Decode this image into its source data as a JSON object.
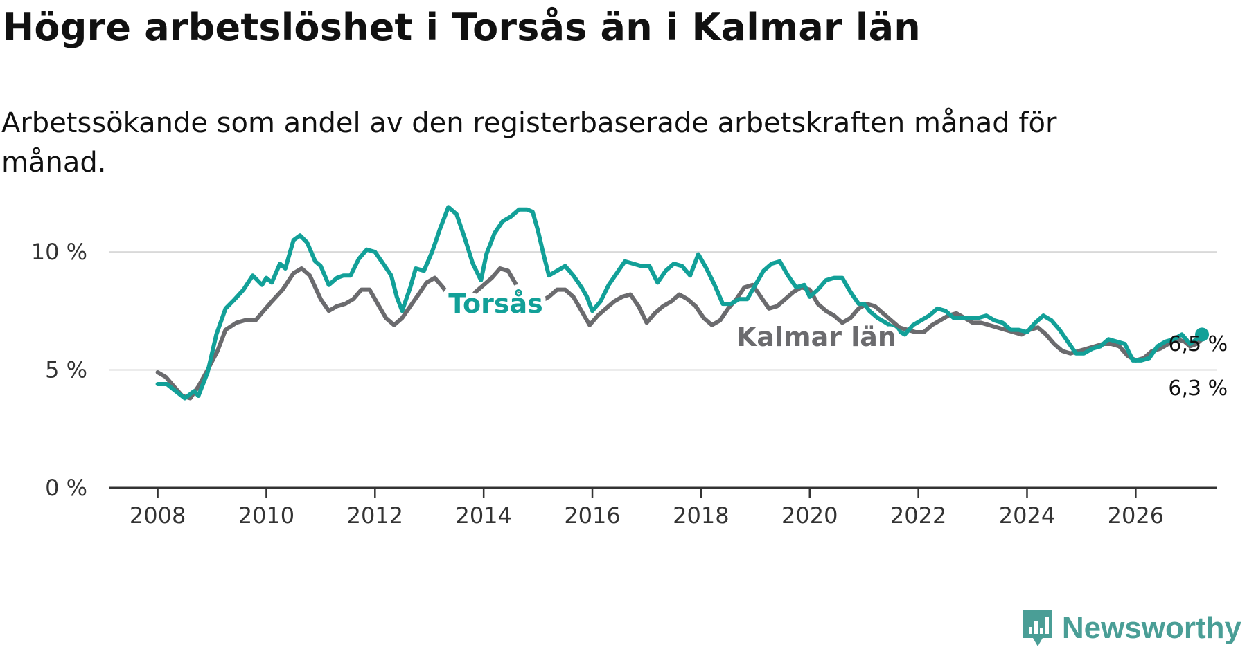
{
  "header": {
    "title": "Högre arbetslöshet i Torsås än i Kalmar län",
    "subtitle": "Arbetssökande som andel av den registerbaserade arbetskraften månad för månad."
  },
  "brand": {
    "name": "Newsworthy"
  },
  "colors": {
    "torsas": "#12a098",
    "kalmar": "#6b6b6e",
    "grid": "#d9d9d9",
    "axis": "#333333",
    "brand": "#4a9e96"
  },
  "chart_data": {
    "type": "line",
    "title": "Högre arbetslöshet i Torsås än i Kalmar län",
    "xlabel": "",
    "ylabel": "",
    "xlim": [
      2007.1,
      2027.5
    ],
    "ylim": [
      0,
      11
    ],
    "yticks": [
      0,
      5,
      10
    ],
    "ytick_labels": [
      "0 %",
      "5 %",
      "10 %"
    ],
    "xticks": [
      2008,
      2010,
      2012,
      2014,
      2016,
      2018,
      2020,
      2022,
      2024,
      2026
    ],
    "xtick_labels": [
      "2008",
      "2010",
      "2012",
      "2014",
      "2016",
      "2018",
      "2020",
      "2022",
      "2024",
      "2026"
    ],
    "grid": true,
    "series": [
      {
        "name": "Torsås",
        "color": "#12a098",
        "end_label": "6,5 %",
        "points": [
          [
            2008.0,
            4.4
          ],
          [
            2008.17,
            4.4
          ],
          [
            2008.33,
            4.1
          ],
          [
            2008.5,
            3.8
          ],
          [
            2008.67,
            4.1
          ],
          [
            2008.75,
            3.9
          ],
          [
            2008.92,
            4.9
          ],
          [
            2009.08,
            6.5
          ],
          [
            2009.25,
            7.6
          ],
          [
            2009.42,
            8.0
          ],
          [
            2009.58,
            8.4
          ],
          [
            2009.75,
            9.0
          ],
          [
            2009.92,
            8.6
          ],
          [
            2010.0,
            8.9
          ],
          [
            2010.1,
            8.7
          ],
          [
            2010.25,
            9.5
          ],
          [
            2010.35,
            9.3
          ],
          [
            2010.5,
            10.5
          ],
          [
            2010.62,
            10.7
          ],
          [
            2010.75,
            10.4
          ],
          [
            2010.9,
            9.6
          ],
          [
            2011.0,
            9.4
          ],
          [
            2011.15,
            8.6
          ],
          [
            2011.3,
            8.9
          ],
          [
            2011.42,
            9.0
          ],
          [
            2011.55,
            9.0
          ],
          [
            2011.7,
            9.7
          ],
          [
            2011.85,
            10.1
          ],
          [
            2012.0,
            10.0
          ],
          [
            2012.15,
            9.5
          ],
          [
            2012.3,
            9.0
          ],
          [
            2012.4,
            8.1
          ],
          [
            2012.5,
            7.5
          ],
          [
            2012.65,
            8.5
          ],
          [
            2012.75,
            9.3
          ],
          [
            2012.9,
            9.2
          ],
          [
            2013.05,
            10.0
          ],
          [
            2013.2,
            11.0
          ],
          [
            2013.35,
            11.9
          ],
          [
            2013.5,
            11.6
          ],
          [
            2013.65,
            10.6
          ],
          [
            2013.8,
            9.5
          ],
          [
            2013.95,
            8.8
          ],
          [
            2014.05,
            9.9
          ],
          [
            2014.2,
            10.8
          ],
          [
            2014.35,
            11.3
          ],
          [
            2014.5,
            11.5
          ],
          [
            2014.65,
            11.8
          ],
          [
            2014.8,
            11.8
          ],
          [
            2014.9,
            11.7
          ],
          [
            2015.0,
            10.9
          ],
          [
            2015.1,
            9.9
          ],
          [
            2015.2,
            9.0
          ],
          [
            2015.35,
            9.2
          ],
          [
            2015.5,
            9.4
          ],
          [
            2015.65,
            9.0
          ],
          [
            2015.8,
            8.5
          ],
          [
            2015.9,
            8.1
          ],
          [
            2016.0,
            7.5
          ],
          [
            2016.15,
            7.9
          ],
          [
            2016.3,
            8.6
          ],
          [
            2016.45,
            9.1
          ],
          [
            2016.6,
            9.6
          ],
          [
            2016.75,
            9.5
          ],
          [
            2016.9,
            9.4
          ],
          [
            2017.05,
            9.4
          ],
          [
            2017.2,
            8.7
          ],
          [
            2017.35,
            9.2
          ],
          [
            2017.5,
            9.5
          ],
          [
            2017.65,
            9.4
          ],
          [
            2017.8,
            9.0
          ],
          [
            2017.95,
            9.9
          ],
          [
            2018.1,
            9.3
          ],
          [
            2018.25,
            8.6
          ],
          [
            2018.4,
            7.8
          ],
          [
            2018.55,
            7.8
          ],
          [
            2018.7,
            8.0
          ],
          [
            2018.85,
            8.0
          ],
          [
            2019.0,
            8.6
          ],
          [
            2019.15,
            9.2
          ],
          [
            2019.3,
            9.5
          ],
          [
            2019.45,
            9.6
          ],
          [
            2019.6,
            9.0
          ],
          [
            2019.75,
            8.5
          ],
          [
            2019.9,
            8.6
          ],
          [
            2020.0,
            8.1
          ],
          [
            2020.15,
            8.4
          ],
          [
            2020.3,
            8.8
          ],
          [
            2020.45,
            8.9
          ],
          [
            2020.6,
            8.9
          ],
          [
            2020.75,
            8.3
          ],
          [
            2020.9,
            7.8
          ],
          [
            2021.0,
            7.8
          ],
          [
            2021.1,
            7.5
          ],
          [
            2021.25,
            7.2
          ],
          [
            2021.4,
            7.0
          ],
          [
            2021.6,
            6.7
          ],
          [
            2021.75,
            6.5
          ],
          [
            2021.9,
            6.9
          ],
          [
            2022.05,
            7.1
          ],
          [
            2022.2,
            7.3
          ],
          [
            2022.35,
            7.6
          ],
          [
            2022.5,
            7.5
          ],
          [
            2022.65,
            7.2
          ],
          [
            2022.8,
            7.2
          ],
          [
            2022.95,
            7.2
          ],
          [
            2023.1,
            7.2
          ],
          [
            2023.25,
            7.3
          ],
          [
            2023.4,
            7.1
          ],
          [
            2023.55,
            7.0
          ],
          [
            2023.7,
            6.7
          ],
          [
            2023.85,
            6.7
          ],
          [
            2024.0,
            6.6
          ],
          [
            2024.15,
            7.0
          ],
          [
            2024.3,
            7.3
          ],
          [
            2024.45,
            7.1
          ],
          [
            2024.6,
            6.7
          ],
          [
            2024.75,
            6.2
          ],
          [
            2024.9,
            5.7
          ],
          [
            2025.05,
            5.7
          ],
          [
            2025.2,
            5.9
          ],
          [
            2025.35,
            6.0
          ],
          [
            2025.5,
            6.3
          ],
          [
            2025.65,
            6.2
          ],
          [
            2025.8,
            6.1
          ],
          [
            2025.95,
            5.4
          ],
          [
            2026.1,
            5.4
          ],
          [
            2026.25,
            5.5
          ],
          [
            2026.4,
            6.0
          ],
          [
            2026.55,
            6.2
          ],
          [
            2026.7,
            6.3
          ],
          [
            2026.85,
            6.5
          ],
          [
            2027.0,
            6.1
          ],
          [
            2027.12,
            6.3
          ],
          [
            2027.22,
            6.5
          ]
        ]
      },
      {
        "name": "Kalmar län",
        "color": "#6b6b6e",
        "end_label": "6,3 %",
        "points": [
          [
            2008.0,
            4.9
          ],
          [
            2008.15,
            4.7
          ],
          [
            2008.3,
            4.3
          ],
          [
            2008.45,
            3.9
          ],
          [
            2008.6,
            3.8
          ],
          [
            2008.75,
            4.3
          ],
          [
            2008.92,
            5.0
          ],
          [
            2009.1,
            5.8
          ],
          [
            2009.25,
            6.7
          ],
          [
            2009.45,
            7.0
          ],
          [
            2009.6,
            7.1
          ],
          [
            2009.8,
            7.1
          ],
          [
            2009.95,
            7.5
          ],
          [
            2010.1,
            7.9
          ],
          [
            2010.3,
            8.4
          ],
          [
            2010.5,
            9.1
          ],
          [
            2010.65,
            9.3
          ],
          [
            2010.8,
            9.0
          ],
          [
            2011.0,
            8.0
          ],
          [
            2011.15,
            7.5
          ],
          [
            2011.3,
            7.7
          ],
          [
            2011.45,
            7.8
          ],
          [
            2011.6,
            8.0
          ],
          [
            2011.75,
            8.4
          ],
          [
            2011.9,
            8.4
          ],
          [
            2012.05,
            7.8
          ],
          [
            2012.2,
            7.2
          ],
          [
            2012.35,
            6.9
          ],
          [
            2012.5,
            7.2
          ],
          [
            2012.65,
            7.7
          ],
          [
            2012.8,
            8.2
          ],
          [
            2012.95,
            8.7
          ],
          [
            2013.1,
            8.9
          ],
          [
            2013.25,
            8.5
          ],
          [
            2013.4,
            8.0
          ],
          [
            2013.55,
            7.6
          ],
          [
            2013.7,
            7.8
          ],
          [
            2013.85,
            8.3
          ],
          [
            2014.0,
            8.6
          ],
          [
            2014.15,
            8.9
          ],
          [
            2014.3,
            9.3
          ],
          [
            2014.45,
            9.2
          ],
          [
            2014.6,
            8.6
          ],
          [
            2014.75,
            7.8
          ],
          [
            2014.9,
            7.7
          ],
          [
            2015.05,
            7.9
          ],
          [
            2015.2,
            8.1
          ],
          [
            2015.35,
            8.4
          ],
          [
            2015.5,
            8.4
          ],
          [
            2015.65,
            8.1
          ],
          [
            2015.8,
            7.5
          ],
          [
            2015.95,
            6.9
          ],
          [
            2016.1,
            7.3
          ],
          [
            2016.25,
            7.6
          ],
          [
            2016.4,
            7.9
          ],
          [
            2016.55,
            8.1
          ],
          [
            2016.7,
            8.2
          ],
          [
            2016.85,
            7.7
          ],
          [
            2017.0,
            7.0
          ],
          [
            2017.15,
            7.4
          ],
          [
            2017.3,
            7.7
          ],
          [
            2017.45,
            7.9
          ],
          [
            2017.6,
            8.2
          ],
          [
            2017.75,
            8.0
          ],
          [
            2017.9,
            7.7
          ],
          [
            2018.05,
            7.2
          ],
          [
            2018.2,
            6.9
          ],
          [
            2018.35,
            7.1
          ],
          [
            2018.5,
            7.6
          ],
          [
            2018.65,
            8.0
          ],
          [
            2018.8,
            8.5
          ],
          [
            2018.95,
            8.6
          ],
          [
            2019.1,
            8.1
          ],
          [
            2019.25,
            7.6
          ],
          [
            2019.4,
            7.7
          ],
          [
            2019.55,
            8.0
          ],
          [
            2019.7,
            8.3
          ],
          [
            2019.85,
            8.5
          ],
          [
            2020.0,
            8.4
          ],
          [
            2020.15,
            7.8
          ],
          [
            2020.3,
            7.5
          ],
          [
            2020.45,
            7.3
          ],
          [
            2020.6,
            7.0
          ],
          [
            2020.75,
            7.2
          ],
          [
            2020.9,
            7.6
          ],
          [
            2021.05,
            7.8
          ],
          [
            2021.2,
            7.7
          ],
          [
            2021.35,
            7.4
          ],
          [
            2021.5,
            7.1
          ],
          [
            2021.65,
            6.8
          ],
          [
            2021.8,
            6.7
          ],
          [
            2021.95,
            6.6
          ],
          [
            2022.1,
            6.6
          ],
          [
            2022.25,
            6.9
          ],
          [
            2022.4,
            7.1
          ],
          [
            2022.55,
            7.3
          ],
          [
            2022.7,
            7.4
          ],
          [
            2022.85,
            7.2
          ],
          [
            2023.0,
            7.0
          ],
          [
            2023.15,
            7.0
          ],
          [
            2023.3,
            6.9
          ],
          [
            2023.45,
            6.8
          ],
          [
            2023.6,
            6.7
          ],
          [
            2023.75,
            6.6
          ],
          [
            2023.9,
            6.5
          ],
          [
            2024.05,
            6.7
          ],
          [
            2024.2,
            6.8
          ],
          [
            2024.35,
            6.5
          ],
          [
            2024.5,
            6.1
          ],
          [
            2024.65,
            5.8
          ],
          [
            2024.8,
            5.7
          ],
          [
            2024.95,
            5.8
          ],
          [
            2025.1,
            5.9
          ],
          [
            2025.25,
            6.0
          ],
          [
            2025.4,
            6.1
          ],
          [
            2025.55,
            6.1
          ],
          [
            2025.7,
            6.0
          ],
          [
            2025.85,
            5.6
          ],
          [
            2026.0,
            5.4
          ],
          [
            2026.15,
            5.5
          ],
          [
            2026.3,
            5.8
          ],
          [
            2026.45,
            5.9
          ],
          [
            2026.6,
            6.1
          ],
          [
            2026.75,
            6.3
          ],
          [
            2026.9,
            6.2
          ],
          [
            2027.0,
            6.0
          ],
          [
            2027.12,
            6.1
          ],
          [
            2027.22,
            6.3
          ]
        ]
      }
    ]
  }
}
